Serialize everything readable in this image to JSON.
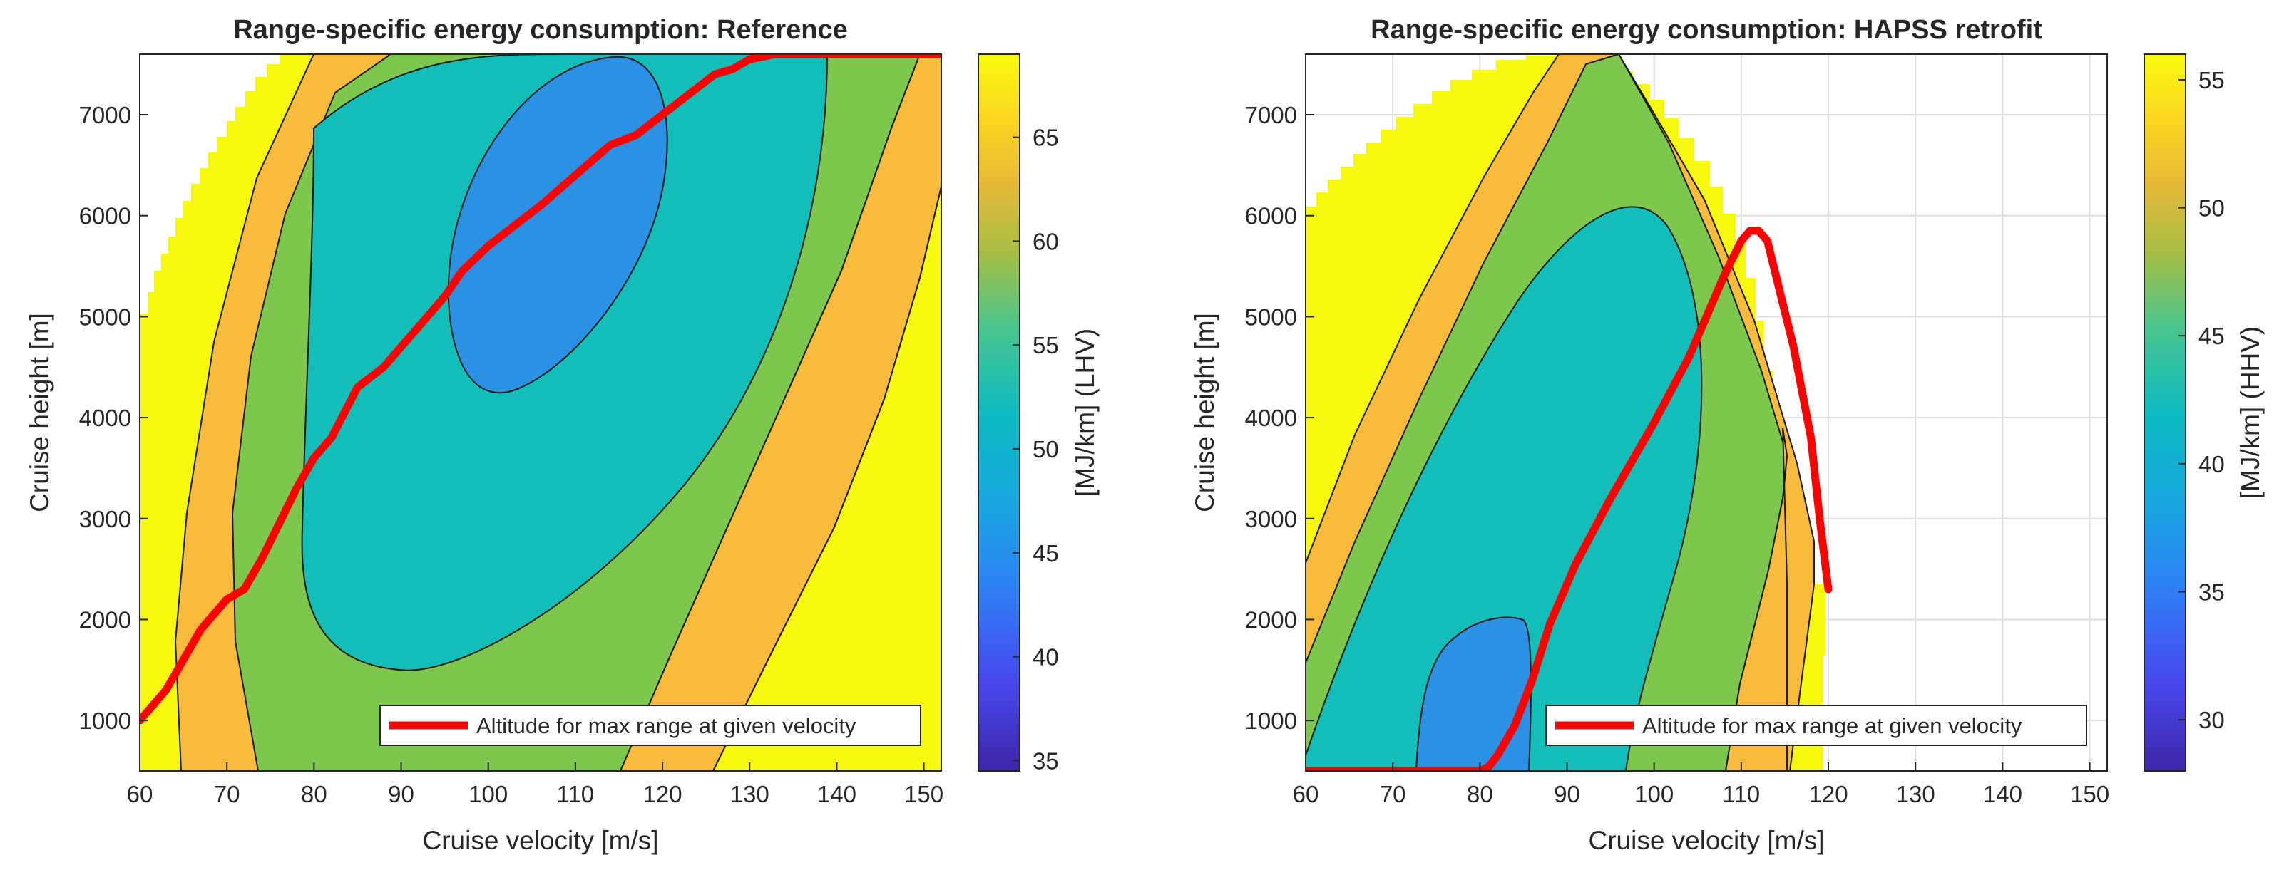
{
  "chart_data": [
    {
      "type": "contour",
      "title": "Range-specific energy consumption: Reference",
      "xlabel": "Cruise velocity [m/s]",
      "ylabel": "Cruise height [m]",
      "xlim": [
        60,
        152
      ],
      "ylim": [
        500,
        7600
      ],
      "xticks": [
        60,
        70,
        80,
        90,
        100,
        110,
        120,
        130,
        140,
        150
      ],
      "yticks": [
        1000,
        2000,
        3000,
        4000,
        5000,
        6000,
        7000
      ],
      "grid": false,
      "colorbar": {
        "label": "[MJ/km] (LHV)",
        "range": [
          34.5,
          69
        ],
        "ticks": [
          35,
          40,
          45,
          50,
          55,
          60,
          65
        ]
      },
      "contour_levels": [
        {
          "label": ">= 63",
          "color": "#F6F80F"
        },
        {
          "label": "58 - 63",
          "color": "#F9BB3C"
        },
        {
          "label": "52 - 58",
          "color": "#7DC84C"
        },
        {
          "label": "47 - 52",
          "color": "#12BEB8"
        },
        {
          "label": "< 47",
          "color": "#2A91E5"
        }
      ],
      "legend": {
        "label": "Altitude for max range at given velocity",
        "position": "bottom-right",
        "color": "#FF0000"
      },
      "series": [
        {
          "name": "Altitude for max range at given velocity",
          "x": [
            60,
            63,
            65,
            67,
            70,
            72,
            74,
            76,
            78,
            80,
            82,
            85,
            88,
            90,
            92,
            95,
            97,
            100,
            103,
            106,
            110,
            114,
            117,
            120,
            123,
            126,
            128,
            130,
            133,
            136,
            140,
            145,
            152
          ],
          "y": [
            1000,
            1300,
            1600,
            1900,
            2200,
            2300,
            2600,
            2950,
            3300,
            3600,
            3800,
            4300,
            4500,
            4700,
            4900,
            5200,
            5450,
            5700,
            5900,
            6100,
            6400,
            6700,
            6800,
            7000,
            7200,
            7400,
            7450,
            7550,
            7600,
            7600,
            7600,
            7600,
            7600
          ]
        }
      ]
    },
    {
      "type": "contour",
      "title": "Range-specific energy consumption: HAPSS retrofit",
      "xlabel": "Cruise velocity [m/s]",
      "ylabel": "Cruise height [m]",
      "xlim": [
        60,
        152
      ],
      "ylim": [
        500,
        7600
      ],
      "xticks": [
        60,
        70,
        80,
        90,
        100,
        110,
        120,
        130,
        140,
        150
      ],
      "yticks": [
        1000,
        2000,
        3000,
        4000,
        5000,
        6000,
        7000
      ],
      "grid": true,
      "colorbar": {
        "label": "[MJ/km] (HHV)",
        "range": [
          28,
          56
        ],
        "ticks": [
          30,
          35,
          40,
          45,
          50,
          55
        ]
      },
      "contour_levels": [
        {
          "label": ">= 51",
          "color": "#F6F80F"
        },
        {
          "label": "47 - 51",
          "color": "#F9BB3C"
        },
        {
          "label": "43 - 47",
          "color": "#7DC84C"
        },
        {
          "label": "39 - 43",
          "color": "#12BEB8"
        },
        {
          "label": "< 39",
          "color": "#2A91E5"
        }
      ],
      "legend": {
        "label": "Altitude for max range at given velocity",
        "position": "bottom-right",
        "color": "#FF0000"
      },
      "series": [
        {
          "name": "Altitude for max range at given velocity",
          "x": [
            60,
            70,
            80,
            81,
            82,
            84,
            86,
            88,
            91,
            95,
            100,
            104,
            106,
            108,
            110,
            111,
            112,
            113,
            114,
            116,
            118,
            119,
            120
          ],
          "y": [
            500,
            500,
            500,
            540,
            650,
            950,
            1400,
            1950,
            2550,
            3200,
            3950,
            4600,
            5000,
            5400,
            5750,
            5850,
            5850,
            5750,
            5400,
            4700,
            3800,
            3000,
            2300
          ]
        }
      ]
    }
  ]
}
